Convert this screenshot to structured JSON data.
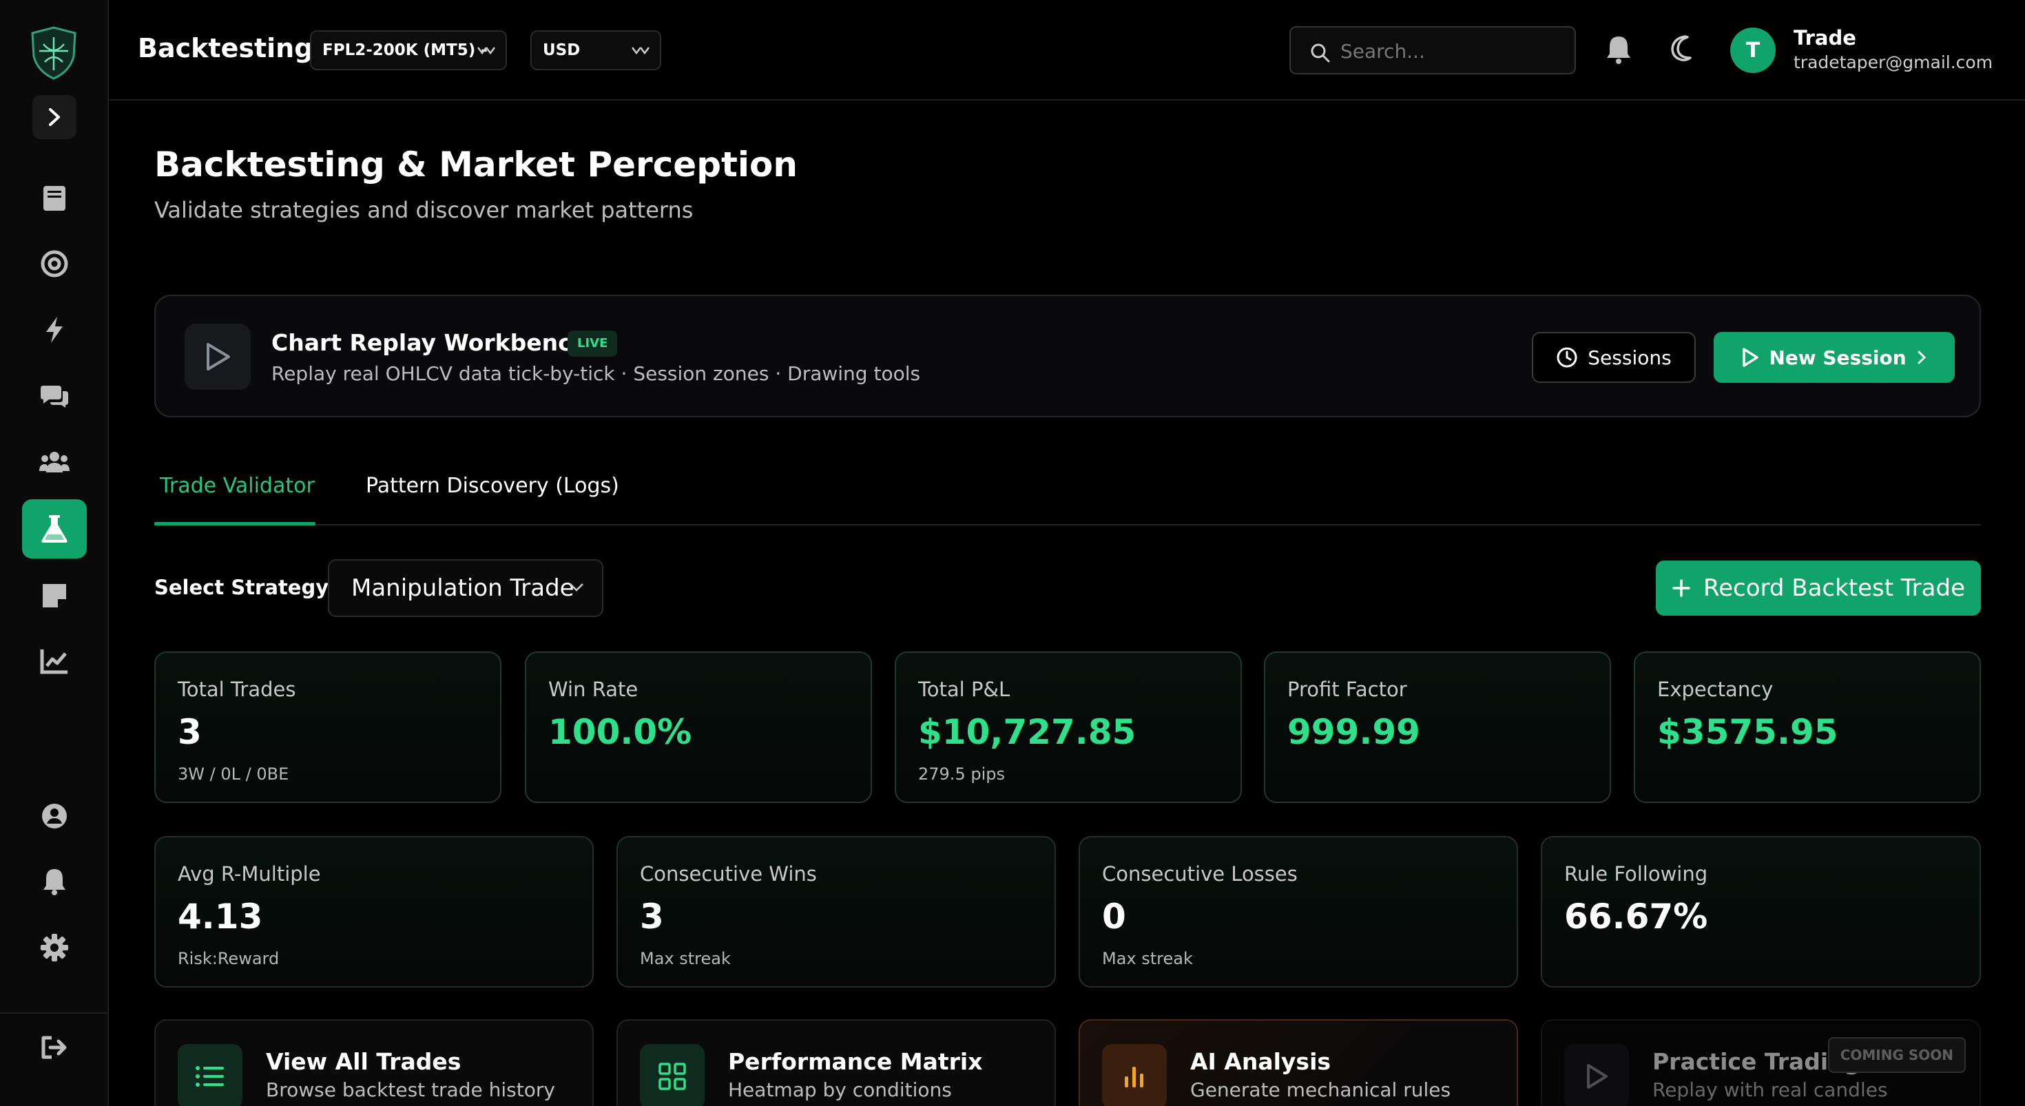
{
  "header": {
    "app_title": "Backtesting",
    "account_select": "FPL2-200K (MT5) -",
    "currency_select": "USD",
    "search_placeholder": "Search...",
    "user_initial": "T",
    "user_name": "Trade",
    "user_email": "tradetaper@gmail.com"
  },
  "sidebar": {
    "items": [
      {
        "icon": "book-icon",
        "active": false
      },
      {
        "icon": "target-icon",
        "active": false
      },
      {
        "icon": "lightning-icon",
        "active": false
      },
      {
        "icon": "chat-icon",
        "active": false
      },
      {
        "icon": "community-icon",
        "active": false
      },
      {
        "icon": "flask-icon",
        "active": true
      },
      {
        "icon": "note-icon",
        "active": false
      },
      {
        "icon": "analytics-icon",
        "active": false
      },
      {
        "icon": "profile-icon",
        "active": false
      },
      {
        "icon": "notifications-icon",
        "active": false
      },
      {
        "icon": "settings-icon",
        "active": false
      },
      {
        "icon": "logout-icon",
        "active": false
      }
    ]
  },
  "page": {
    "title": "Backtesting & Market Perception",
    "subtitle": "Validate strategies and discover market patterns"
  },
  "replay": {
    "title": "Chart Replay Workbench",
    "badge": "LIVE",
    "description": "Replay real OHLCV data tick-by-tick · Session zones · Drawing tools",
    "sessions_label": "Sessions",
    "new_session_label": "New Session"
  },
  "tabs": [
    {
      "label": "Trade Validator",
      "active": true
    },
    {
      "label": "Pattern Discovery (Logs)",
      "active": false
    }
  ],
  "strategy": {
    "label": "Select Strategy:",
    "value": "Manipulation Trade",
    "record_label": "Record Backtest Trade"
  },
  "stats_row1": [
    {
      "label": "Total Trades",
      "value": "3",
      "sub": "3W / 0L / 0BE",
      "accent": false
    },
    {
      "label": "Win Rate",
      "value": "100.0%",
      "sub": "",
      "accent": true
    },
    {
      "label": "Total P&L",
      "value": "$10,727.85",
      "sub": "279.5 pips",
      "accent": true
    },
    {
      "label": "Profit Factor",
      "value": "999.99",
      "sub": "",
      "accent": true
    },
    {
      "label": "Expectancy",
      "value": "$3575.95",
      "sub": "",
      "accent": true
    }
  ],
  "stats_row2": [
    {
      "label": "Avg R-Multiple",
      "value": "4.13",
      "sub": "Risk:Reward"
    },
    {
      "label": "Consecutive Wins",
      "value": "3",
      "sub": "Max streak"
    },
    {
      "label": "Consecutive Losses",
      "value": "0",
      "sub": "Max streak"
    },
    {
      "label": "Rule Following",
      "value": "66.67%",
      "sub": ""
    }
  ],
  "actions": [
    {
      "title": "View All Trades",
      "desc": "Browse backtest trade history",
      "icon": "list-icon"
    },
    {
      "title": "Performance Matrix",
      "desc": "Heatmap by conditions",
      "icon": "grid-icon"
    },
    {
      "title": "AI Analysis",
      "desc": "Generate mechanical rules",
      "icon": "bar-chart-icon"
    },
    {
      "title": "Practice Trading",
      "desc": "Replay with real candles",
      "icon": "play-icon",
      "badge": "COMING SOON"
    }
  ],
  "colors": {
    "accent": "#10a36a",
    "accent_text": "#2ee08a",
    "ai_accent": "#f5a623"
  }
}
